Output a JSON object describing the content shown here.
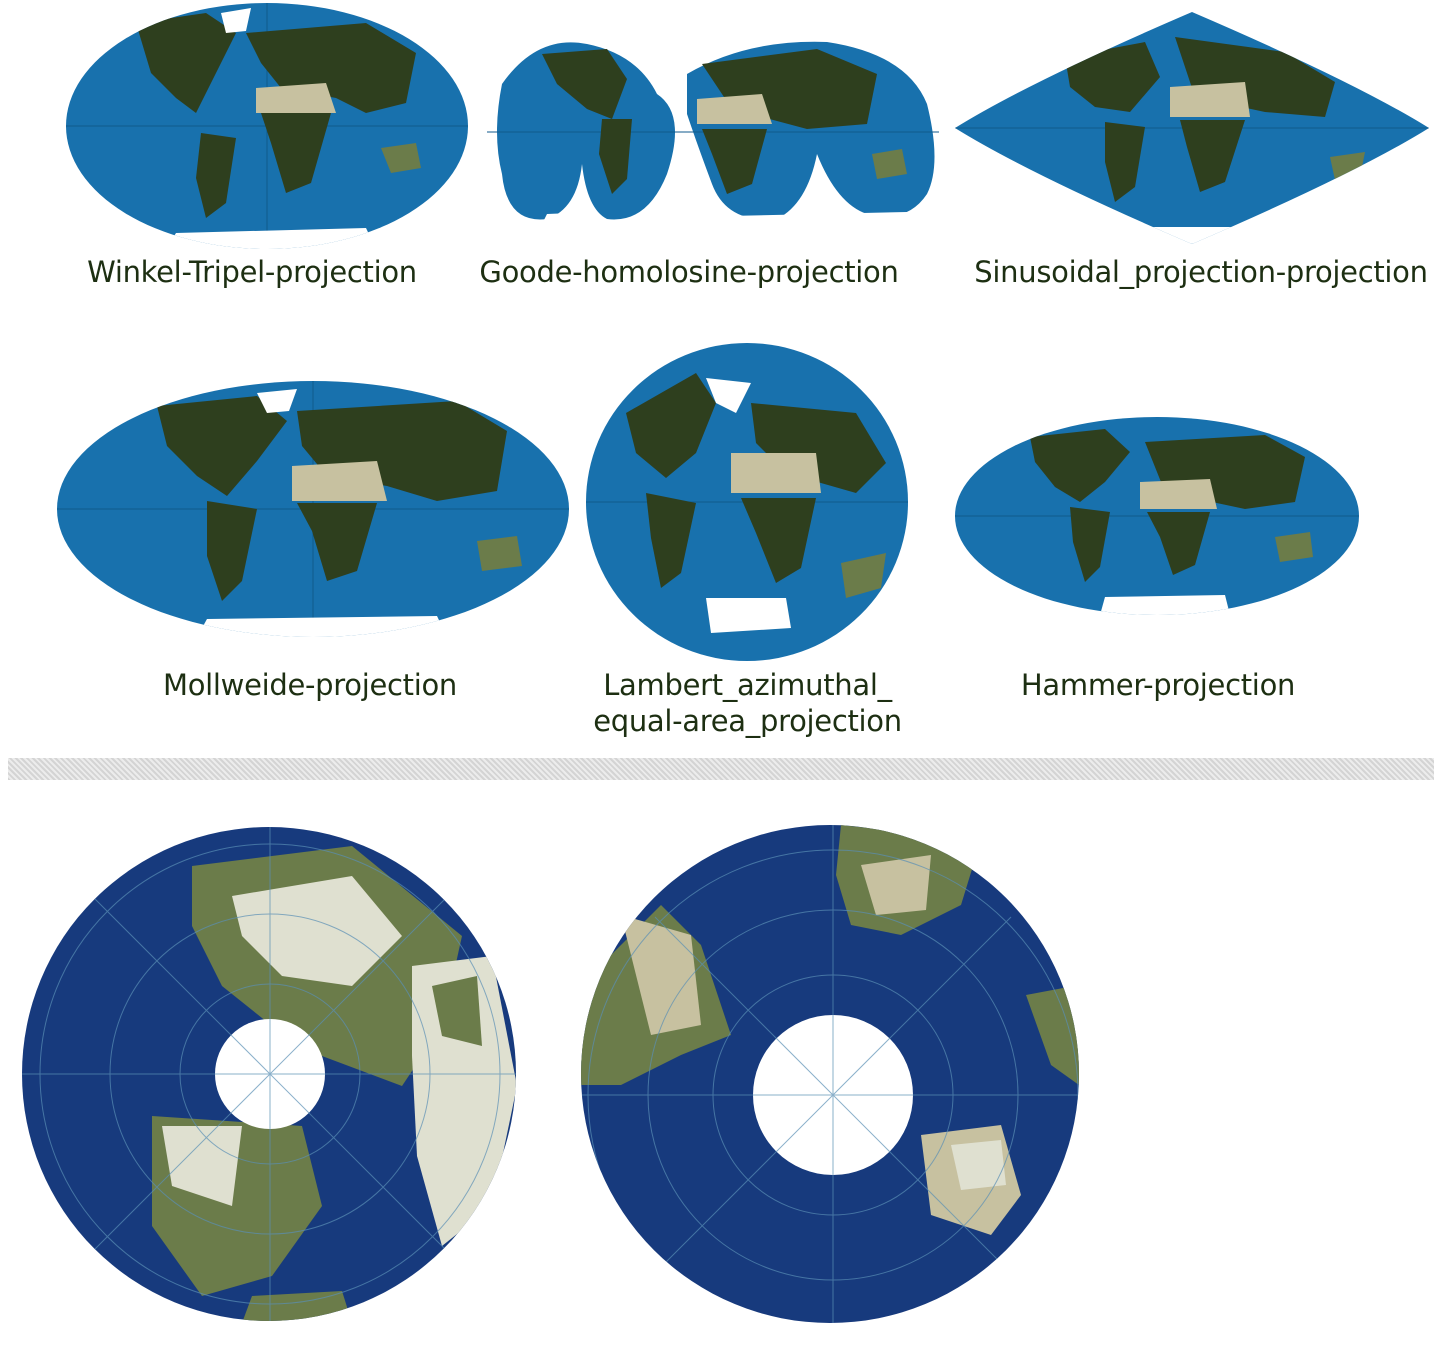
{
  "figure": {
    "colors": {
      "ocean_light": "#1871ad",
      "ocean_dark": "#173a7d",
      "land_dark": "#2e3f1e",
      "land_green": "#6b7c4a",
      "desert": "#c7c1a0",
      "ice": "#ffffff",
      "caption": "#1d2f12"
    },
    "projections": [
      {
        "label": "Winkel-Tripel-projection",
        "shape": "ellipse"
      },
      {
        "label": "Goode-homolosine-projection",
        "shape": "interrupted-lobes"
      },
      {
        "label": "Sinusoidal_projection-projection",
        "shape": "lens"
      },
      {
        "label": "Mollweide-projection",
        "shape": "ellipse"
      },
      {
        "label": "Lambert_azimuthal_",
        "label_line2": "equal-area_projection",
        "shape": "circle"
      },
      {
        "label": "Hammer-projection",
        "shape": "ellipse"
      }
    ],
    "polar_views": [
      {
        "icon": "north-polar-globe-icon"
      },
      {
        "icon": "south-polar-globe-icon"
      }
    ]
  }
}
